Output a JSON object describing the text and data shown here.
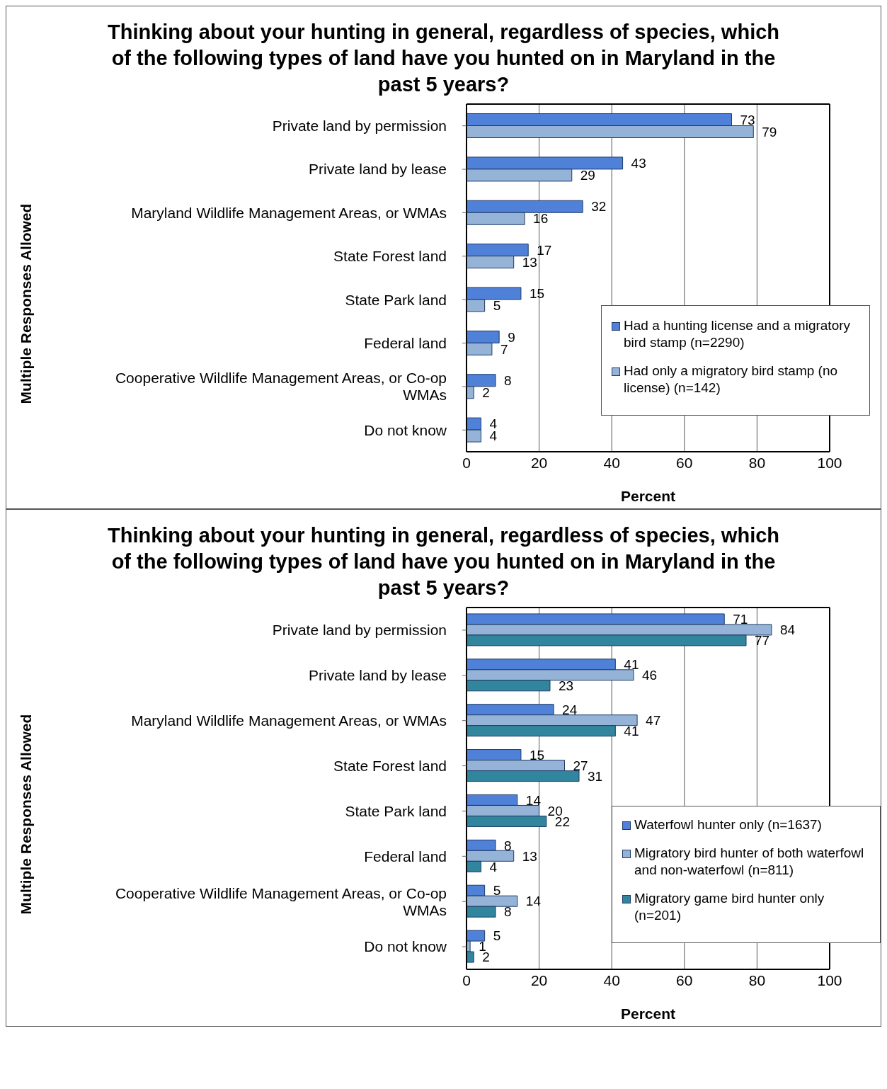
{
  "chart_data": [
    {
      "type": "bar",
      "orientation": "horizontal",
      "title": "Thinking about your hunting in general, regardless of species, which of the following types of land have you hunted on in Maryland in the past 5 years?",
      "xlabel": "Percent",
      "ylabel": "Multiple Responses Allowed",
      "categories": [
        "Private land by permission",
        "Private land by lease",
        "Maryland Wildlife Management Areas, or WMAs",
        "State Forest land",
        "State Park land",
        "Federal land",
        "Cooperative Wildlife Management Areas, or Co-op WMAs",
        "Do not know"
      ],
      "series": [
        {
          "name": "Had a hunting license and a migratory bird stamp (n=2290)",
          "color": "#4f81d8",
          "values": [
            73,
            43,
            32,
            17,
            15,
            9,
            8,
            4
          ]
        },
        {
          "name": "Had only a migratory bird stamp (no license) (n=142)",
          "color": "#95b3d7",
          "values": [
            79,
            29,
            16,
            13,
            5,
            7,
            2,
            4
          ]
        }
      ],
      "xlim": [
        0,
        100
      ],
      "xticks": [
        0,
        20,
        40,
        60,
        80,
        100
      ],
      "grid": "x",
      "legend": "right",
      "data_labels": true
    },
    {
      "type": "bar",
      "orientation": "horizontal",
      "title": "Thinking about your hunting in general, regardless of species, which of the following types of land have you hunted on in Maryland in the past 5 years?",
      "xlabel": "Percent",
      "ylabel": "Multiple Responses Allowed",
      "categories": [
        "Private land by permission",
        "Private land by lease",
        "Maryland Wildlife Management Areas, or WMAs",
        "State Forest land",
        "State Park land",
        "Federal land",
        "Cooperative Wildlife Management Areas, or Co-op WMAs",
        "Do not know"
      ],
      "series": [
        {
          "name": "Waterfowl hunter only (n=1637)",
          "color": "#4f81d8",
          "values": [
            71,
            41,
            24,
            15,
            14,
            8,
            5,
            5
          ]
        },
        {
          "name": "Migratory bird hunter of both waterfowl and non-waterfowl (n=811)",
          "color": "#95b3d7",
          "values": [
            84,
            46,
            47,
            27,
            20,
            13,
            14,
            1
          ]
        },
        {
          "name": "Migratory game bird hunter only (n=201)",
          "color": "#31859c",
          "values": [
            77,
            23,
            41,
            31,
            22,
            4,
            8,
            2
          ]
        }
      ],
      "xlim": [
        0,
        100
      ],
      "xticks": [
        0,
        20,
        40,
        60,
        80,
        100
      ],
      "grid": "x",
      "legend": "right",
      "data_labels": true
    }
  ]
}
